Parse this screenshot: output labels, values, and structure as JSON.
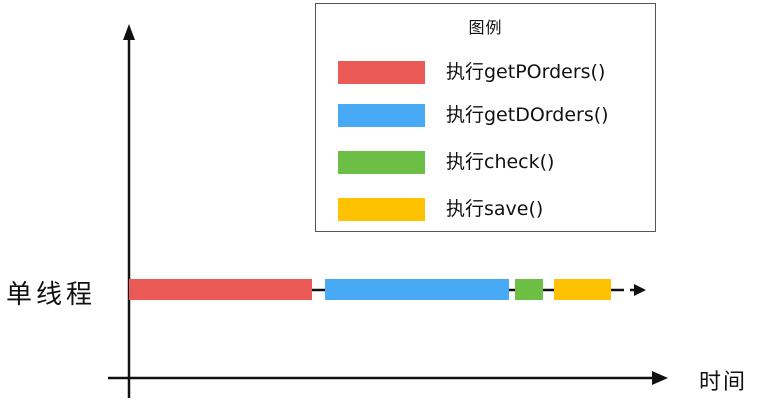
{
  "legend": {
    "title": "图例",
    "items": [
      {
        "label": "执行getPOrders()",
        "color": "#EB5A57"
      },
      {
        "label": "执行getDOrders()",
        "color": "#48A9F5"
      },
      {
        "label": "执行check()",
        "color": "#6CBE45"
      },
      {
        "label": "执行save()",
        "color": "#FFC200"
      }
    ]
  },
  "thread_label": "单线程",
  "x_axis_label": "时间",
  "timeline": {
    "segments": [
      {
        "task": "执行getPOrders()",
        "color": "#EB5A57"
      },
      {
        "task": "执行getDOrders()",
        "color": "#48A9F5"
      },
      {
        "task": "执行check()",
        "color": "#6CBE45"
      },
      {
        "task": "执行save()",
        "color": "#FFC200"
      }
    ]
  }
}
